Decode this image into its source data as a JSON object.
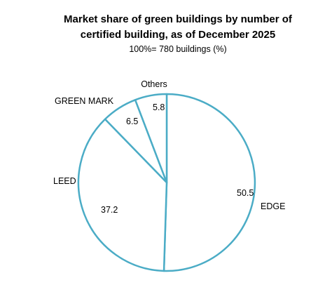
{
  "chart_data": {
    "type": "pie",
    "title": "Market share of green buildings by number of certified building, as of December 2025",
    "title_lines": [
      "Market share of green buildings by number of",
      "certified building, as of December 2025"
    ],
    "subtitle": "100%= 780 buildings (%)",
    "slices": [
      {
        "label": "EDGE",
        "value": 50.5,
        "value_label": "50.5"
      },
      {
        "label": "LEED",
        "value": 37.2,
        "value_label": "37.2"
      },
      {
        "label": "GREEN MARK",
        "value": 6.5,
        "value_label": "6.5"
      },
      {
        "label": "Others",
        "value": 5.8,
        "value_label": "5.8"
      }
    ],
    "style": {
      "stroke": "#4bacc6",
      "fill": "#ffffff"
    }
  }
}
